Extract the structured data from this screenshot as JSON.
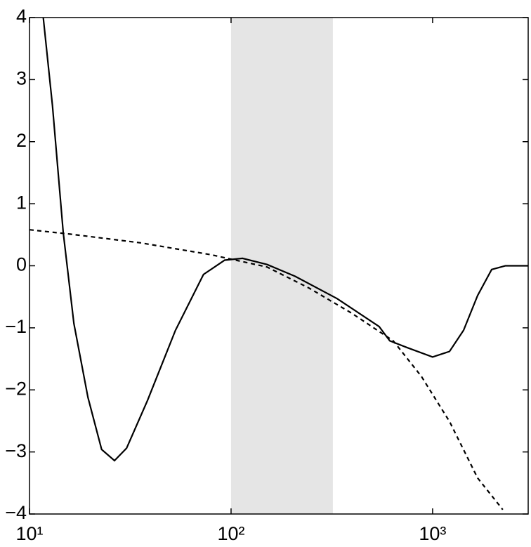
{
  "chart_data": {
    "type": "line",
    "xscale": "log",
    "xlim": [
      10,
      2980
    ],
    "ylim": [
      -4,
      4
    ],
    "xticks": [
      {
        "value": 10,
        "label": "10¹"
      },
      {
        "value": 100,
        "label": "10²"
      },
      {
        "value": 1000,
        "label": "10³"
      }
    ],
    "yticks": [
      {
        "value": -4,
        "label": "−4"
      },
      {
        "value": -3,
        "label": "−3"
      },
      {
        "value": -2,
        "label": "−2"
      },
      {
        "value": -1,
        "label": "−1"
      },
      0,
      1,
      2,
      3,
      4
    ],
    "shaded_span": {
      "x": [
        100,
        320
      ],
      "color": "#e5e5e5"
    },
    "series": [
      {
        "color": "#000000",
        "dash": false,
        "x": [
          11.7,
          13,
          14.7,
          16.6,
          19.5,
          22.8,
          26.4,
          30.3,
          38.5,
          53,
          73,
          93,
          114,
          151,
          208,
          336,
          543,
          613,
          750,
          1000,
          1213,
          1424,
          1672,
          1963,
          2300,
          2980
        ],
        "values": [
          4.0,
          2.58,
          0.54,
          -0.93,
          -2.12,
          -2.96,
          -3.14,
          -2.94,
          -2.17,
          -1.04,
          -0.14,
          0.09,
          0.12,
          0.02,
          -0.17,
          -0.53,
          -0.98,
          -1.21,
          -1.32,
          -1.47,
          -1.38,
          -1.04,
          -0.48,
          -0.06,
          0,
          0
        ]
      },
      {
        "color": "#000000",
        "dash": true,
        "x": [
          10,
          15.9,
          35.5,
          79,
          151,
          244,
          395,
          638,
          879,
          1213,
          1672,
          2228
        ],
        "values": [
          0.58,
          0.51,
          0.37,
          0.18,
          -0.02,
          -0.36,
          -0.76,
          -1.21,
          -1.78,
          -2.51,
          -3.42,
          -3.93
        ]
      }
    ]
  }
}
